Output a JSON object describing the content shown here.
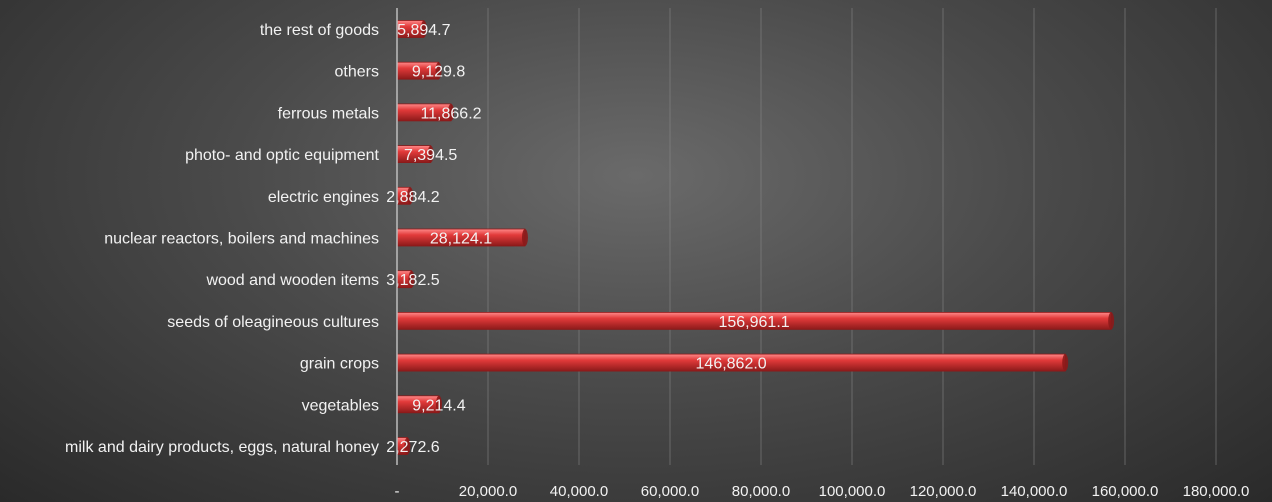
{
  "chart_data": {
    "type": "bar",
    "orientation": "horizontal",
    "title": "",
    "xlabel": "",
    "ylabel": "",
    "categories": [
      "the rest of goods",
      "others",
      "ferrous metals",
      "photo- and optic equipment",
      "electric engines",
      "nuclear reactors, boilers and  machines",
      "wood  and wooden items",
      "seeds of oleagineous cultures",
      "grain crops",
      "vegetables",
      "milk and dairy products, eggs, natural honey"
    ],
    "values": [
      5894.7,
      9129.8,
      11866.2,
      7394.5,
      2884.2,
      28124.1,
      3182.5,
      156961.1,
      146862.0,
      9214.4,
      2272.6
    ],
    "value_labels": [
      "5,894.7",
      "9,129.8",
      "11,866.2",
      "7,394.5",
      "2,884.2",
      "28,124.1",
      "3,182.5",
      "156,961.1",
      "146,862.0",
      "9,214.4",
      "2,272.6"
    ],
    "xlim": [
      0,
      180000
    ],
    "x_ticks": [
      0,
      20000,
      40000,
      60000,
      80000,
      100000,
      120000,
      140000,
      160000,
      180000
    ],
    "x_tick_labels": [
      "-",
      "20,000.0",
      "40,000.0",
      "60,000.0",
      "80,000.0",
      "100,000.0",
      "120,000.0",
      "140,000.0",
      "160,000.0",
      "180,000.0"
    ],
    "grid": true,
    "legend": "none",
    "bar_color": "#e23a3a",
    "bar_highlight_color": "#ff8a8a",
    "bar_edge_color": "#8c1a1a"
  }
}
